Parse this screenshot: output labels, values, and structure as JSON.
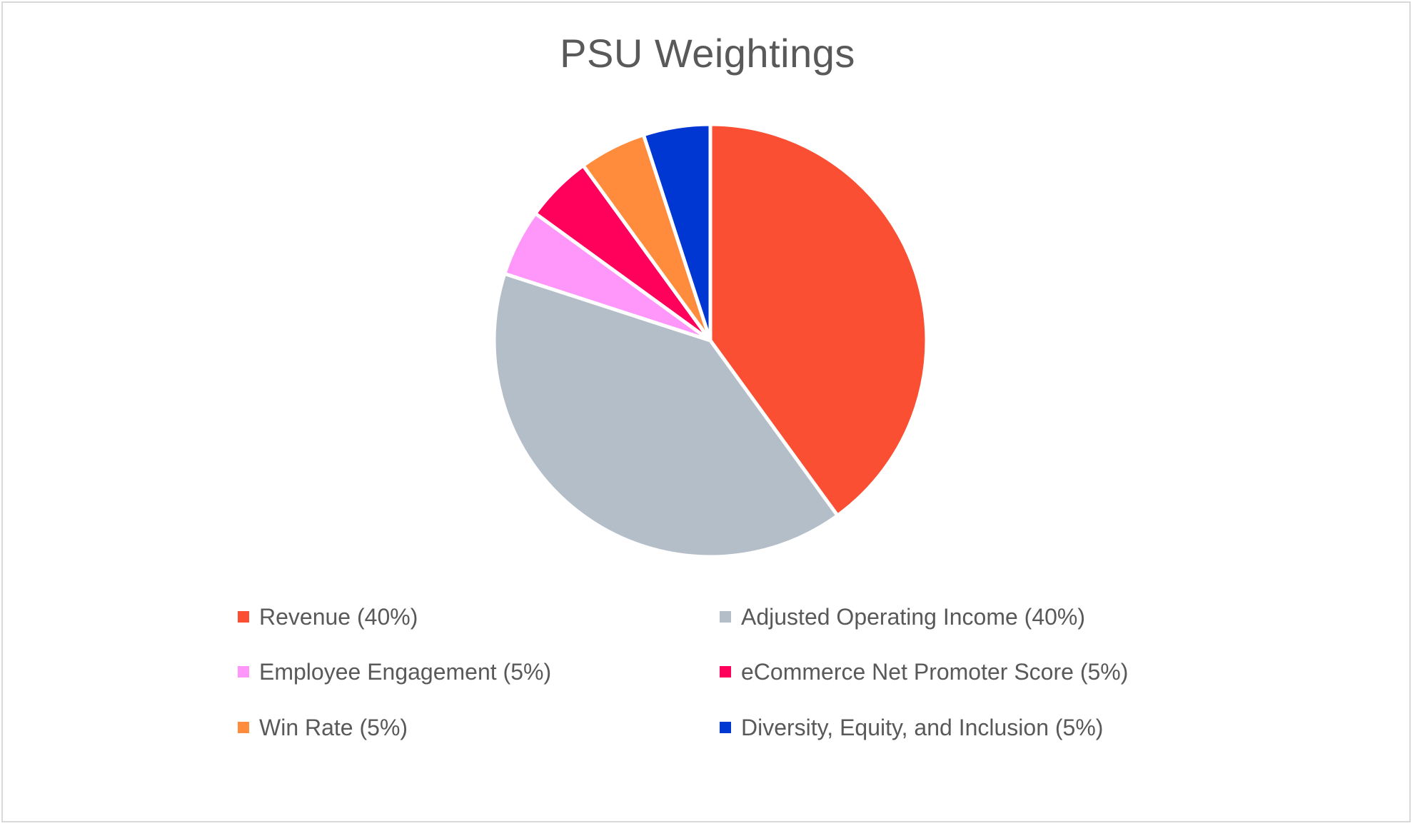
{
  "chart_data": {
    "type": "pie",
    "title": "PSU Weightings",
    "categories": [
      "Revenue",
      "Adjusted Operating Income",
      "Employee Engagement",
      "eCommerce Net Promoter Score",
      "Win Rate",
      "Diversity, Equity, and Inclusion"
    ],
    "values": [
      40,
      40,
      5,
      5,
      5,
      5
    ],
    "colors": [
      "#FA4F32",
      "#B4BEC8",
      "#FF96FA",
      "#FF005A",
      "#FF8C3C",
      "#0037D2"
    ],
    "unit": "%",
    "start_angle_deg": 0,
    "direction": "clockwise",
    "legend_position": "bottom",
    "legend_entries": [
      "Revenue (40%)",
      "Adjusted Operating Income (40%)",
      "Employee Engagement (5%)",
      "eCommerce Net Promoter Score (5%)",
      "Win Rate (5%)",
      "Diversity, Equity, and Inclusion (5%)"
    ]
  },
  "chart": {
    "title": "PSU Weightings",
    "title_color": "#595959",
    "border_color": "#D9D9D9",
    "slice_separator_color": "#FFFFFF"
  },
  "legend": {
    "items": [
      {
        "label": "Revenue (40%)",
        "color": "#FA4F32"
      },
      {
        "label": "Adjusted Operating Income (40%)",
        "color": "#B4BEC8"
      },
      {
        "label": "Employee Engagement (5%)",
        "color": "#FF96FA"
      },
      {
        "label": "eCommerce Net Promoter Score (5%)",
        "color": "#FF005A"
      },
      {
        "label": "Win Rate (5%)",
        "color": "#FF8C3C"
      },
      {
        "label": "Diversity, Equity, and Inclusion (5%)",
        "color": "#0037D2"
      }
    ]
  }
}
